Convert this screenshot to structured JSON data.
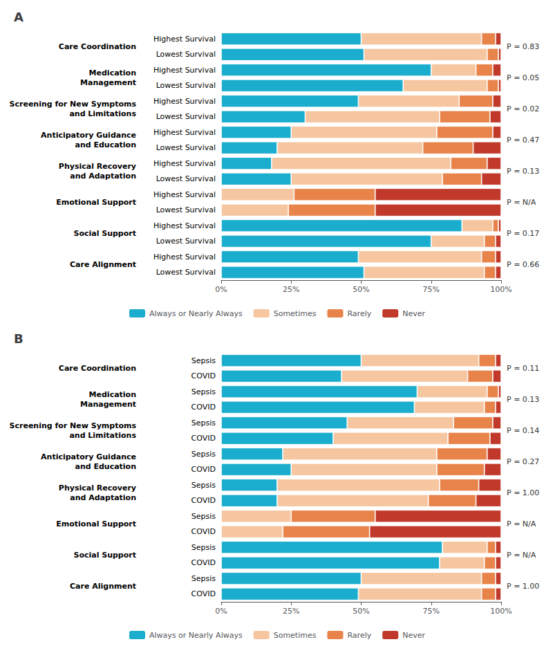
{
  "chart_data": [
    {
      "type": "bar",
      "orientation": "horizontal",
      "stacked": true,
      "title": "A",
      "groups": [
        "Care Coordination",
        "Medication\nManagement",
        "Screening for New Symptoms\nand Limitations",
        "Anticipatory Guidance\nand Education",
        "Physical Recovery\nand Adaptation",
        "Emotional Support",
        "Social Support",
        "Care Alignment"
      ],
      "annotations": [
        "P = 0.83",
        "P = 0.05",
        "P = 0.02",
        "P = 0.47",
        "P = 0.13",
        "P = N/A",
        "P = 0.17",
        "P = 0.66"
      ],
      "categories": [
        "Highest Survival",
        "Lowest Survival",
        "Highest Survival",
        "Lowest Survival",
        "Highest Survival",
        "Lowest Survival",
        "Highest Survival",
        "Lowest Survival",
        "Highest Survival",
        "Lowest Survival",
        "Highest Survival",
        "Lowest Survival",
        "Highest Survival",
        "Lowest Survival",
        "Highest Survival",
        "Lowest Survival"
      ],
      "series": [
        {
          "name": "Always or Nearly Always",
          "color": "#1AADCE",
          "values": [
            50,
            51,
            75,
            65,
            49,
            30,
            25,
            20,
            18,
            25,
            0,
            0,
            86,
            75,
            49,
            51
          ]
        },
        {
          "name": "Sometimes",
          "color": "#F5C6A0",
          "values": [
            43,
            44,
            16,
            30,
            36,
            48,
            52,
            52,
            64,
            54,
            26,
            24,
            11,
            19,
            44,
            43
          ]
        },
        {
          "name": "Rarely",
          "color": "#E8834A",
          "values": [
            5,
            4,
            6,
            4,
            12,
            18,
            20,
            18,
            13,
            14,
            29,
            31,
            2,
            4,
            5,
            4
          ]
        },
        {
          "name": "Never",
          "color": "#C0392B",
          "values": [
            2,
            1,
            3,
            1,
            3,
            4,
            3,
            10,
            5,
            7,
            45,
            45,
            1,
            2,
            2,
            2
          ]
        }
      ],
      "xlim": [
        0,
        100
      ],
      "xticks": [
        {
          "value": 0,
          "label": "0%"
        },
        {
          "value": 25,
          "label": "25%"
        },
        {
          "value": 50,
          "label": "50%"
        },
        {
          "value": 75,
          "label": "75%"
        },
        {
          "value": 100,
          "label": "100%"
        }
      ],
      "grid": false,
      "legend": "bottom"
    },
    {
      "type": "bar",
      "orientation": "horizontal",
      "stacked": true,
      "title": "B",
      "groups": [
        "Care Coordination",
        "Medication\nManagement",
        "Screening for New Symptoms\nand Limitations",
        "Anticipatory Guidance\nand Education",
        "Physical Recovery\nand Adaptation",
        "Emotional Support",
        "Social Support",
        "Care Alignment"
      ],
      "annotations": [
        "P = 0.11",
        "P = 0.13",
        "P = 0.14",
        "P = 0.27",
        "P = 1.00",
        "P = N/A",
        "P = N/A",
        "P = 1.00"
      ],
      "categories": [
        "Sepsis",
        "COVID",
        "Sepsis",
        "COVID",
        "Sepsis",
        "COVID",
        "Sepsis",
        "COVID",
        "Sepsis",
        "COVID",
        "Sepsis",
        "COVID",
        "Sepsis",
        "COVID",
        "Sepsis",
        "COVID"
      ],
      "series": [
        {
          "name": "Always or Nearly Always",
          "color": "#1AADCE",
          "values": [
            50,
            43,
            70,
            69,
            45,
            40,
            22,
            25,
            20,
            20,
            0,
            0,
            79,
            78,
            50,
            49
          ]
        },
        {
          "name": "Sometimes",
          "color": "#F5C6A0",
          "values": [
            42,
            45,
            25,
            25,
            38,
            41,
            55,
            52,
            58,
            54,
            25,
            22,
            16,
            16,
            43,
            44
          ]
        },
        {
          "name": "Rarely",
          "color": "#E8834A",
          "values": [
            6,
            9,
            4,
            4,
            14,
            15,
            18,
            17,
            14,
            17,
            30,
            31,
            3,
            4,
            5,
            5
          ]
        },
        {
          "name": "Never",
          "color": "#C0392B",
          "values": [
            2,
            3,
            1,
            2,
            3,
            4,
            5,
            6,
            8,
            9,
            45,
            47,
            2,
            2,
            2,
            2
          ]
        }
      ],
      "xlim": [
        0,
        100
      ],
      "xticks": [
        {
          "value": 0,
          "label": "0%"
        },
        {
          "value": 25,
          "label": "25%"
        },
        {
          "value": 50,
          "label": "50%"
        },
        {
          "value": 75,
          "label": "75%"
        },
        {
          "value": 100,
          "label": "100%"
        }
      ],
      "grid": false,
      "legend": "bottom"
    }
  ]
}
